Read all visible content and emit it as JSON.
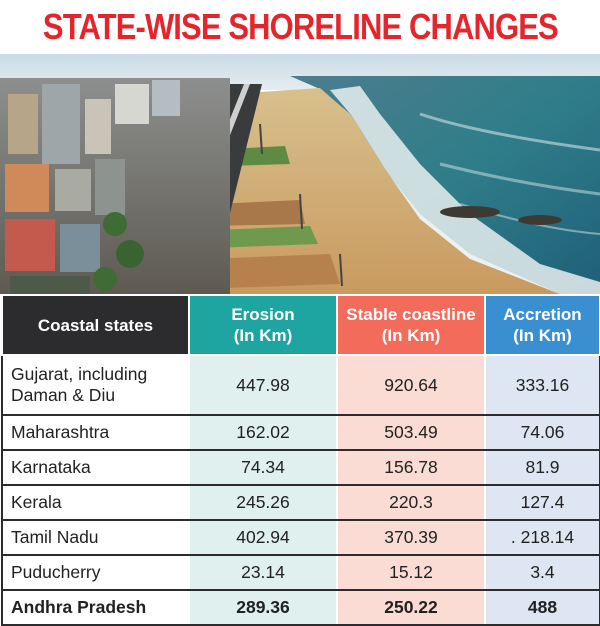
{
  "title": "STATE-WISE SHORELINE CHANGES",
  "chart_data": {
    "type": "table",
    "columns": [
      {
        "line1": "Coastal states",
        "line2": ""
      },
      {
        "line1": "Erosion",
        "line2": "(In Km)"
      },
      {
        "line1": "Stable coastline",
        "line2": "(In Km)"
      },
      {
        "line1": "Accretion",
        "line2": "(In Km)"
      }
    ],
    "rows": [
      {
        "state": "Gujarat, including",
        "state_line2": "Daman & Diu",
        "erosion": "447.98",
        "stable": "920.64",
        "accretion": "333.16"
      },
      {
        "state": "Maharashtra",
        "state_line2": "",
        "erosion": "162.02",
        "stable": "503.49",
        "accretion": "74.06"
      },
      {
        "state": "Karnataka",
        "state_line2": "",
        "erosion": "74.34",
        "stable": "156.78",
        "accretion": "81.9"
      },
      {
        "state": "Kerala",
        "state_line2": "",
        "erosion": "245.26",
        "stable": "220.3",
        "accretion": "127.4"
      },
      {
        "state": "Tamil Nadu",
        "state_line2": "",
        "erosion": "402.94",
        "stable": "370.39",
        "accretion": ". 218.14"
      },
      {
        "state": "Puducherry",
        "state_line2": "",
        "erosion": "23.14",
        "stable": "15.12",
        "accretion": "3.4"
      },
      {
        "state": "Andhra Pradesh",
        "state_line2": "",
        "erosion": "289.36",
        "stable": "250.22",
        "accretion": "488"
      }
    ]
  },
  "colors": {
    "title": "#e4262c",
    "header_state": "#2c2c2e",
    "header_erosion": "#1ea5a2",
    "header_stable": "#f26b5b",
    "header_accretion": "#3a8fd1",
    "cell_erosion": "#dff0ee",
    "cell_stable": "#fbdcd4",
    "cell_accretion": "#dde6f2"
  }
}
